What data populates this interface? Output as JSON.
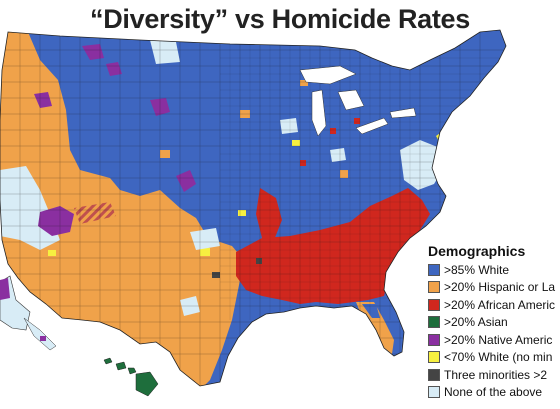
{
  "title": "“Diversity” vs Homicide Rates",
  "legend": {
    "title": "Demographics",
    "items": [
      {
        "label": ">85% White",
        "color": "#3e66c0"
      },
      {
        "label": ">20% Hispanic or La",
        "color": "#f0a24a"
      },
      {
        "label": ">20% African Americ",
        "color": "#d0271e"
      },
      {
        "label": ">20% Asian",
        "color": "#1e6e3c"
      },
      {
        "label": ">20% Native Americ",
        "color": "#8a2fa0"
      },
      {
        "label": "<70% White (no min",
        "color": "#f7f040"
      },
      {
        "label": "Three minorities >2",
        "color": "#444444"
      },
      {
        "label": "None of the above",
        "color": "#d8ecf6"
      }
    ]
  }
}
